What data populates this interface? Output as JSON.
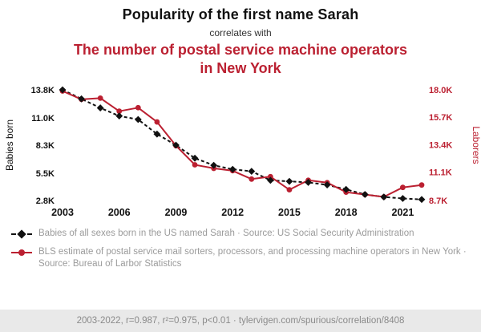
{
  "header": {
    "title": "Popularity of the first name Sarah",
    "connector": "correlates with",
    "subtitle": "The number of postal service machine operators in New York"
  },
  "colors": {
    "accent_red": "#bb2031",
    "series_black": "#111111",
    "legend_gray": "#9b9b9b",
    "footer_bg": "#e9e9e9"
  },
  "chart_data": {
    "type": "line",
    "x": [
      2003,
      2004,
      2005,
      2006,
      2007,
      2008,
      2009,
      2010,
      2011,
      2012,
      2013,
      2014,
      2015,
      2016,
      2017,
      2018,
      2019,
      2020,
      2021,
      2022
    ],
    "x_tick_labels": [
      "2003",
      "2006",
      "2009",
      "2012",
      "2015",
      "2018",
      "2021"
    ],
    "grid": false,
    "left_axis": {
      "label": "Babies born",
      "tick_labels": [
        "13.8K",
        "11.0K",
        "8.3K",
        "5.5K",
        "2.8K"
      ],
      "tick_values": [
        13800,
        11000,
        8300,
        5500,
        2800
      ],
      "range": [
        2800,
        13800
      ]
    },
    "right_axis": {
      "label": "Laborers",
      "tick_labels": [
        "18.0K",
        "15.7K",
        "13.4K",
        "11.1K",
        "8.7K"
      ],
      "tick_values": [
        18000,
        15700,
        13400,
        11100,
        8700
      ],
      "range": [
        8700,
        18000
      ]
    },
    "series": [
      {
        "name": "Babies of all sexes born in the US named Sarah",
        "axis": "left",
        "color": "#111111",
        "line_style": "dashed",
        "marker": "diamond",
        "values": [
          13800,
          12900,
          12000,
          11200,
          10850,
          9400,
          8300,
          7000,
          6300,
          5900,
          5700,
          4800,
          4700,
          4600,
          4350,
          3900,
          3400,
          3150,
          3000,
          2900
        ]
      },
      {
        "name": "BLS estimate of postal service mail sorters, processors, and processing machine operators in New York",
        "axis": "right",
        "color": "#bb2031",
        "line_style": "solid",
        "marker": "circle",
        "values": [
          17900,
          17200,
          17300,
          16200,
          16500,
          15300,
          13300,
          11700,
          11400,
          11200,
          10500,
          10700,
          9600,
          10400,
          10200,
          9400,
          9200,
          9000,
          9800,
          10000
        ]
      }
    ]
  },
  "legend": [
    {
      "text": "Babies of all sexes born in the US named Sarah · Source: US Social Security Administration"
    },
    {
      "text": "BLS estimate of postal service mail sorters, processors, and processing machine operators in New York · Source: Bureau of Larbor Statistics"
    }
  ],
  "footer": {
    "text": "2003-2022, r=0.987, r²=0.975, p<0.01 · tylervigen.com/spurious/correlation/8408"
  }
}
